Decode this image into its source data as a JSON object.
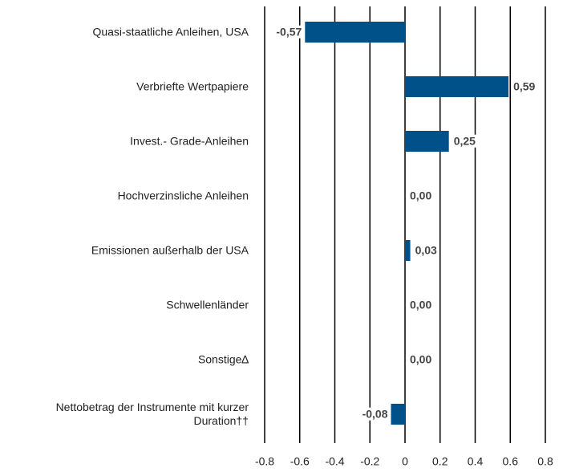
{
  "chart_data": {
    "type": "bar",
    "orientation": "horizontal",
    "categories": [
      "Quasi-staatliche Anleihen, USA",
      "Verbriefte Wertpapiere",
      "Invest.- Grade-Anleihen",
      "Hochverzinsliche Anleihen",
      "Emissionen außerhalb der USA",
      "Schwellenländer",
      "Sonstige∆",
      "Nettobetrag der Instrumente mit kurzer Duration††"
    ],
    "values": [
      -0.57,
      0.59,
      0.25,
      0.0,
      0.03,
      0.0,
      0.0,
      -0.08
    ],
    "value_labels": [
      "-0,57",
      "0,59",
      "0,25",
      "0,00",
      "0,03",
      "0,00",
      "0,00",
      "-0,08"
    ],
    "color": "#00508a",
    "xlim": [
      -0.8,
      0.8
    ],
    "xticks": [
      -0.8,
      -0.6,
      -0.4,
      -0.2,
      0,
      0.2,
      0.4,
      0.6,
      0.8
    ],
    "grid": true
  }
}
